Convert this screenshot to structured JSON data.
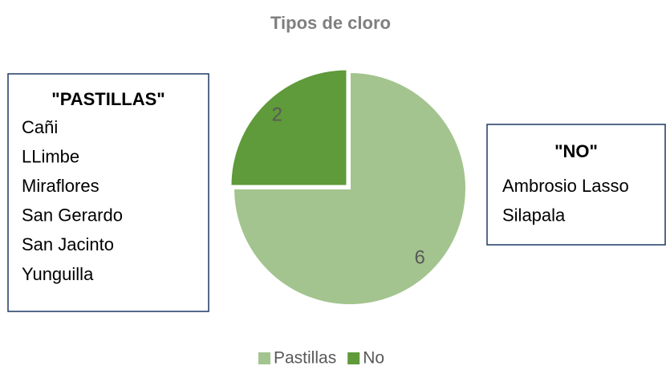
{
  "chart_data": {
    "type": "pie",
    "title": "Tipos de cloro",
    "categories": [
      "Pastillas",
      "No"
    ],
    "values": [
      6,
      2
    ],
    "colors": [
      "#a3c48e",
      "#5f9a3b"
    ],
    "legend": "bottom",
    "annotations": [
      {
        "title": "\"PASTILLAS\"",
        "items": [
          "Cañi",
          "LLimbe",
          "Miraflores",
          "San Gerardo",
          "San Jacinto",
          "Yunguilla"
        ]
      },
      {
        "title": "\"NO\"",
        "items": [
          "Ambrosio Lasso",
          "Silapala"
        ]
      }
    ]
  }
}
